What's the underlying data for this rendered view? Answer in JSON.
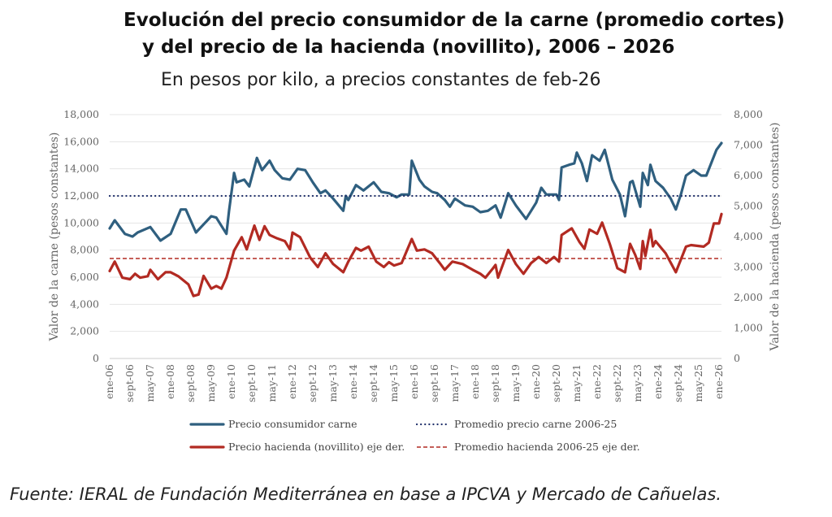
{
  "title_line1": "Evolución del precio consumidor de la carne (promedio cortes)",
  "title_line2": "y del precio de la hacienda (novillito), 2006 – 2026",
  "subtitle": "En pesos por kilo, a precios constantes de feb-26",
  "source": "Fuente: IERAL de Fundación Mediterránea en base a IPCVA y Mercado de Cañuelas.",
  "chart_data": {
    "type": "line",
    "ylabel": "Valor de la carne (pesos constantes)",
    "ylabel_right": "Valor de la hacienda (pesos constantes)",
    "ylim": [
      0,
      18000
    ],
    "ylim_right": [
      0,
      8000
    ],
    "yticks": [
      "0",
      "2,000",
      "4,000",
      "6,000",
      "8,000",
      "10,000",
      "12,000",
      "14,000",
      "16,000",
      "18,000"
    ],
    "yticks_right": [
      "0",
      "1,000",
      "2,000",
      "3,000",
      "4,000",
      "5,000",
      "6,000",
      "7,000",
      "8,000"
    ],
    "xlim": [
      "2006-01",
      "2026-02"
    ],
    "xticks": [
      "ene-06",
      "sept-06",
      "may-07",
      "ene-08",
      "sept-08",
      "may-09",
      "ene-10",
      "sept-10",
      "may-11",
      "ene-12",
      "sept-12",
      "may-13",
      "ene-14",
      "sept-14",
      "may-15",
      "ene-16",
      "sept-16",
      "may-17",
      "ene-18",
      "sept-18",
      "may-19",
      "ene-20",
      "sept-20",
      "may-21",
      "ene-22",
      "sept-22",
      "may-23",
      "ene-24",
      "sept-24",
      "may-25",
      "ene-26"
    ],
    "grid": true,
    "legend_position": "bottom",
    "series": [
      {
        "name": "Precio consumidor carne",
        "axis": "left",
        "color": "#2f5f7f",
        "style": "solid",
        "x": [
          "2006-01",
          "2006-03",
          "2006-07",
          "2006-10",
          "2006-12",
          "2007-05",
          "2007-09",
          "2008-01",
          "2008-05",
          "2008-07",
          "2008-11",
          "2009-05",
          "2009-07",
          "2009-11",
          "2009-12",
          "2010-02",
          "2010-03",
          "2010-06",
          "2010-08",
          "2010-11",
          "2011-01",
          "2011-04",
          "2011-06",
          "2011-09",
          "2011-12",
          "2012-03",
          "2012-06",
          "2012-09",
          "2012-12",
          "2013-02",
          "2013-05",
          "2013-09",
          "2013-10",
          "2013-11",
          "2014-02",
          "2014-05",
          "2014-09",
          "2014-12",
          "2015-03",
          "2015-06",
          "2015-08",
          "2015-11",
          "2015-12",
          "2016-03",
          "2016-05",
          "2016-08",
          "2016-10",
          "2017-01",
          "2017-03",
          "2017-05",
          "2017-09",
          "2017-12",
          "2018-03",
          "2018-06",
          "2018-09",
          "2018-11",
          "2019-02",
          "2019-05",
          "2019-09",
          "2019-11",
          "2020-01",
          "2020-03",
          "2020-05",
          "2020-09",
          "2020-10",
          "2020-11",
          "2021-02",
          "2021-04",
          "2021-05",
          "2021-07",
          "2021-09",
          "2021-11",
          "2022-02",
          "2022-04",
          "2022-07",
          "2022-10",
          "2022-12",
          "2023-02",
          "2023-03",
          "2023-06",
          "2023-07",
          "2023-09",
          "2023-10",
          "2023-12",
          "2024-03",
          "2024-06",
          "2024-08",
          "2024-10",
          "2024-12",
          "2025-03",
          "2025-06",
          "2025-08",
          "2025-12",
          "2026-02"
        ],
        "values": [
          9600,
          10200,
          9200,
          9000,
          9300,
          9700,
          8700,
          9200,
          11000,
          11000,
          9300,
          10500,
          10400,
          9200,
          10900,
          13700,
          13000,
          13200,
          12700,
          14800,
          13900,
          14600,
          13900,
          13300,
          13200,
          14000,
          13900,
          13000,
          12200,
          12400,
          11800,
          10900,
          12000,
          11700,
          12800,
          12400,
          13000,
          12300,
          12200,
          11900,
          12100,
          12100,
          14600,
          13200,
          12700,
          12300,
          12200,
          11700,
          11200,
          11800,
          11300,
          11200,
          10800,
          10900,
          11300,
          10400,
          12200,
          11300,
          10300,
          10900,
          11500,
          12600,
          12100,
          12100,
          11700,
          14100,
          14300,
          14400,
          15200,
          14400,
          13100,
          15000,
          14600,
          15400,
          13200,
          12100,
          10500,
          13000,
          13100,
          11200,
          13700,
          12800,
          14300,
          13100,
          12600,
          11800,
          11000,
          12100,
          13500,
          13900,
          13500,
          13500,
          15400,
          15900
        ]
      },
      {
        "name": "Promedio precio carne 2006-25",
        "axis": "left",
        "color": "#1f2f6a",
        "style": "dotted",
        "x": [
          "2006-01",
          "2026-02"
        ],
        "values": [
          12000,
          12000
        ]
      },
      {
        "name": "Precio hacienda (novillito)  eje der.",
        "axis": "right",
        "color": "#b22a22",
        "style": "solid",
        "x": [
          "2006-01",
          "2006-03",
          "2006-06",
          "2006-09",
          "2006-11",
          "2007-01",
          "2007-04",
          "2007-05",
          "2007-08",
          "2007-11",
          "2008-01",
          "2008-04",
          "2008-08",
          "2008-10",
          "2008-12",
          "2009-02",
          "2009-05",
          "2009-07",
          "2009-09",
          "2009-11",
          "2010-02",
          "2010-05",
          "2010-07",
          "2010-10",
          "2010-12",
          "2011-02",
          "2011-04",
          "2011-07",
          "2011-10",
          "2011-12",
          "2012-01",
          "2012-04",
          "2012-08",
          "2012-11",
          "2013-02",
          "2013-05",
          "2013-09",
          "2013-11",
          "2014-02",
          "2014-04",
          "2014-07",
          "2014-10",
          "2015-01",
          "2015-03",
          "2015-05",
          "2015-08",
          "2015-12",
          "2016-02",
          "2016-05",
          "2016-08",
          "2016-11",
          "2017-01",
          "2017-04",
          "2017-08",
          "2017-12",
          "2018-03",
          "2018-05",
          "2018-08",
          "2018-09",
          "2018-10",
          "2019-02",
          "2019-05",
          "2019-08",
          "2019-11",
          "2020-02",
          "2020-05",
          "2020-08",
          "2020-10",
          "2020-11",
          "2021-03",
          "2021-06",
          "2021-08",
          "2021-10",
          "2022-01",
          "2022-03",
          "2022-06",
          "2022-09",
          "2022-12",
          "2023-02",
          "2023-04",
          "2023-06",
          "2023-07",
          "2023-08",
          "2023-10",
          "2023-11",
          "2023-12",
          "2024-04",
          "2024-08",
          "2024-12",
          "2025-02",
          "2025-07",
          "2025-09",
          "2025-11",
          "2026-01",
          "2026-02"
        ],
        "values": [
          2870,
          3180,
          2650,
          2600,
          2780,
          2650,
          2700,
          2910,
          2600,
          2830,
          2830,
          2700,
          2430,
          2050,
          2100,
          2710,
          2290,
          2380,
          2290,
          2650,
          3540,
          3980,
          3580,
          4360,
          3890,
          4340,
          4050,
          3940,
          3850,
          3580,
          4130,
          3980,
          3310,
          3000,
          3450,
          3100,
          2830,
          3180,
          3630,
          3540,
          3670,
          3180,
          3000,
          3160,
          3050,
          3130,
          3920,
          3540,
          3580,
          3450,
          3130,
          2910,
          3180,
          3100,
          2910,
          2780,
          2650,
          2960,
          3070,
          2650,
          3560,
          3100,
          2780,
          3130,
          3330,
          3130,
          3330,
          3180,
          4050,
          4270,
          3830,
          3600,
          4230,
          4090,
          4460,
          3760,
          2960,
          2830,
          3760,
          3400,
          2940,
          3850,
          3360,
          4220,
          3680,
          3850,
          3450,
          2830,
          3670,
          3720,
          3670,
          3800,
          4430,
          4430,
          4740
        ]
      },
      {
        "name": "Promedio hacienda 2006-25 eje der.",
        "axis": "right",
        "color": "#b22a22",
        "style": "dashed",
        "x": [
          "2006-01",
          "2026-02"
        ],
        "values": [
          3280,
          3280
        ]
      }
    ]
  }
}
